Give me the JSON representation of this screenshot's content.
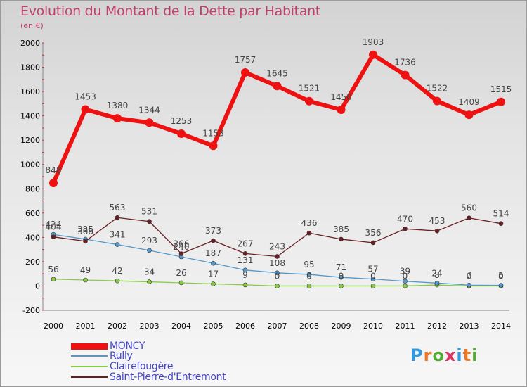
{
  "title": "Evolution du Montant de la Dette par Habitant",
  "unit_label": "(en €)",
  "logo_text": "Proxiti",
  "colors": {
    "title": "#c0406a",
    "legend_text": "#4444cc",
    "axis_text": "#000000",
    "value_text": "#444444"
  },
  "chart_data": {
    "type": "line",
    "title": "Evolution du Montant de la Dette par Habitant",
    "subtitle": "(en €)",
    "xlabel": "",
    "ylabel": "",
    "x": [
      2000,
      2001,
      2002,
      2003,
      2004,
      2005,
      2006,
      2007,
      2008,
      2009,
      2010,
      2011,
      2012,
      2013,
      2014
    ],
    "ylim": [
      -200,
      2000
    ],
    "yticks": [
      -200,
      0,
      200,
      400,
      600,
      800,
      1000,
      1200,
      1400,
      1600,
      1800,
      2000
    ],
    "grid": false,
    "legend_position": "bottom-left",
    "series": [
      {
        "name": "MONCY",
        "color": "#ee1111",
        "values": [
          848,
          1453,
          1380,
          1344,
          1253,
          1153,
          1757,
          1645,
          1521,
          1450,
          1903,
          1736,
          1522,
          1409,
          1515
        ],
        "labels": [
          "848",
          "1453",
          "1380",
          "1344",
          "1253",
          "1153",
          "1757",
          "1645",
          "1521",
          "1450",
          "1903",
          "1736",
          "1522",
          "1409",
          "1515"
        ]
      },
      {
        "name": "Rully",
        "color": "#5599cc",
        "values": [
          424,
          385,
          341,
          293,
          240,
          187,
          131,
          108,
          95,
          71,
          57,
          39,
          24,
          7,
          5
        ],
        "labels": [
          "424",
          "385",
          "341",
          "293",
          "240",
          "187",
          "131",
          "108",
          "95",
          "71",
          "57",
          "39",
          "24",
          "7",
          "5"
        ]
      },
      {
        "name": "Clairefougère",
        "color": "#88cc44",
        "values": [
          56,
          49,
          42,
          34,
          26,
          17,
          9,
          0,
          0,
          0,
          0,
          0,
          8,
          0,
          0
        ],
        "labels": [
          "56",
          "49",
          "42",
          "34",
          "26",
          "17",
          "9",
          "0",
          "0",
          "0",
          "0",
          "0",
          "8",
          "0",
          "0"
        ]
      },
      {
        "name": "Saint-Pierre-d'Entremont",
        "color": "#6b1f25",
        "values": [
          404,
          368,
          563,
          531,
          266,
          373,
          267,
          243,
          436,
          385,
          356,
          470,
          453,
          560,
          514
        ],
        "labels": [
          "404",
          "368",
          "563",
          "531",
          "266",
          "373",
          "267",
          "243",
          "436",
          "385",
          "356",
          "470",
          "453",
          "560",
          "514"
        ]
      }
    ]
  }
}
